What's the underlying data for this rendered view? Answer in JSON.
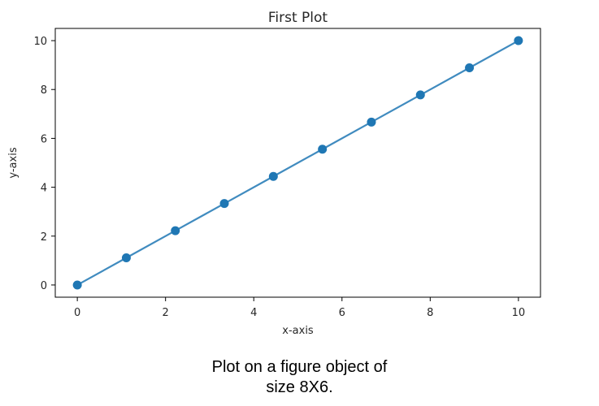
{
  "chart_data": {
    "type": "line",
    "title": "First Plot",
    "xlabel": "x-axis",
    "ylabel": "y-axis",
    "xlim": [
      -0.5,
      10.5
    ],
    "ylim": [
      -0.5,
      10.5
    ],
    "xticks": [
      "0",
      "2",
      "4",
      "6",
      "8",
      "10"
    ],
    "xtick_values": [
      0,
      2,
      4,
      6,
      8,
      10
    ],
    "yticks": [
      "0",
      "2",
      "4",
      "6",
      "8",
      "10"
    ],
    "ytick_values": [
      0,
      2,
      4,
      6,
      8,
      10
    ],
    "grid": false,
    "series": [
      {
        "x": [
          0,
          1.111,
          2.222,
          3.333,
          4.444,
          5.556,
          6.667,
          7.778,
          8.889,
          10
        ],
        "y": [
          0,
          1.111,
          2.222,
          3.333,
          4.444,
          5.556,
          6.667,
          7.778,
          8.889,
          10
        ],
        "color": "#1f77b4",
        "marker": "circle"
      }
    ]
  },
  "caption": {
    "line1": "Plot on a figure object of",
    "line2": "size 8X6."
  }
}
